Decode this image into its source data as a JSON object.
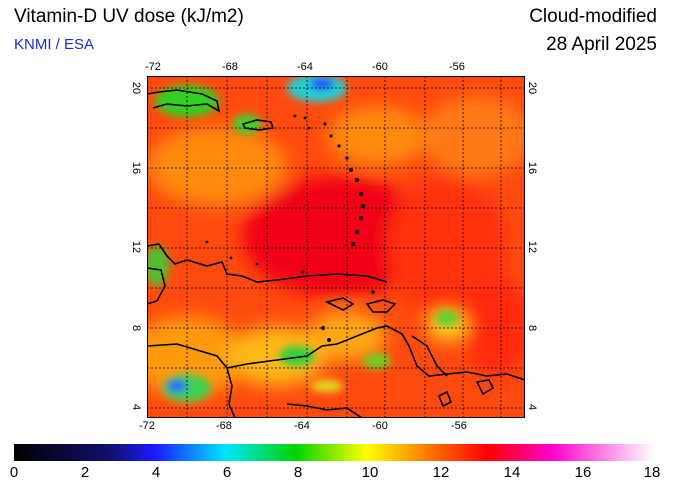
{
  "header": {
    "title": "Vitamin-D UV dose (kJ/m2)",
    "subtitle": "KNMI / ESA",
    "mode": "Cloud-modified",
    "date": "28 April 2025"
  },
  "map": {
    "lon_ticks": [
      "-72",
      "-68",
      "-64",
      "-60",
      "-56"
    ],
    "lat_ticks": [
      "20",
      "16",
      "12",
      "8",
      "4"
    ]
  },
  "colorbar": {
    "ticks": [
      "0",
      "2",
      "4",
      "6",
      "8",
      "10",
      "12",
      "14",
      "16",
      "18"
    ],
    "colors": [
      "#000000",
      "#1a1aff",
      "#00e5ff",
      "#00d400",
      "#ffff00",
      "#ff0000",
      "#ff00cc",
      "#ffffff"
    ]
  }
}
